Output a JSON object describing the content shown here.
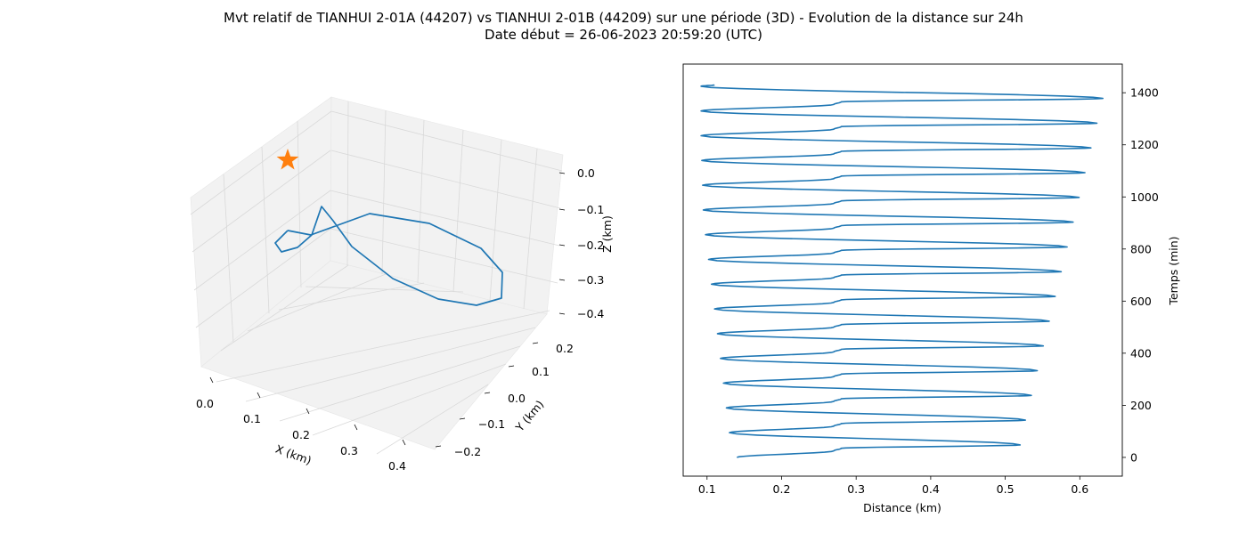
{
  "figure": {
    "title_line1": "Mvt relatif de TIANHUI 2-01A (44207) vs TIANHUI 2-01B (44209) sur une période (3D) - Evolution de la distance sur 24h",
    "title_line2": "Date début = 26-06-2023 20:59:20 (UTC)"
  },
  "colors": {
    "line": "#1f77b4",
    "marker": "#ff7f0e",
    "pane": "#f2f2f2",
    "grid": "#d9d9d9"
  },
  "chart_data": [
    {
      "type": "line3d",
      "xlabel": "X (km)",
      "ylabel": "Y (km)",
      "zlabel": "Z (km)",
      "xlim": [
        -0.02,
        0.43
      ],
      "ylim": [
        -0.24,
        0.24
      ],
      "zlim": [
        -0.42,
        0.04
      ],
      "xticks": [
        "0.0",
        "0.1",
        "0.2",
        "0.3",
        "0.4"
      ],
      "yticks": [
        "−0.2",
        "−0.1",
        "0.0",
        "0.1",
        "0.2"
      ],
      "zticks": [
        "0.0",
        "−0.1",
        "−0.2",
        "−0.3",
        "−0.4"
      ],
      "marker": {
        "shape": "star",
        "x": 0.0,
        "y": 0.0,
        "z": 0.0
      },
      "path_order": "points given in sequence, last joins first",
      "points": [
        {
          "x": 0.06,
          "y": -0.03,
          "z": -0.08
        },
        {
          "x": 0.09,
          "y": -0.02,
          "z": -0.12
        },
        {
          "x": 0.2,
          "y": 0.0,
          "z": -0.09
        },
        {
          "x": 0.31,
          "y": 0.03,
          "z": -0.11
        },
        {
          "x": 0.39,
          "y": 0.05,
          "z": -0.17
        },
        {
          "x": 0.41,
          "y": 0.03,
          "z": -0.25
        },
        {
          "x": 0.41,
          "y": -0.01,
          "z": -0.32
        },
        {
          "x": 0.35,
          "y": -0.09,
          "z": -0.37
        },
        {
          "x": 0.24,
          "y": -0.12,
          "z": -0.34
        },
        {
          "x": 0.16,
          "y": -0.11,
          "z": -0.27
        },
        {
          "x": 0.08,
          "y": -0.06,
          "z": -0.2
        },
        {
          "x": 0.03,
          "y": -0.02,
          "z": -0.14
        },
        {
          "x": 0.0,
          "y": 0.0,
          "z": -0.11
        },
        {
          "x": 0.0,
          "y": 0.02,
          "z": -0.09
        },
        {
          "x": 0.02,
          "y": 0.02,
          "z": -0.07
        },
        {
          "x": 0.04,
          "y": 0.0,
          "z": -0.07
        },
        {
          "x": 0.07,
          "y": -0.02,
          "z": -0.06
        }
      ]
    },
    {
      "type": "line",
      "xlabel": "Distance (km)",
      "ylabel": "Temps (min)",
      "xlim": [
        0.068,
        0.657
      ],
      "ylim": [
        -72,
        1510
      ],
      "xticks": [
        0.1,
        0.2,
        0.3,
        0.4,
        0.5,
        0.6
      ],
      "yticks": [
        0,
        200,
        400,
        600,
        800,
        1000,
        1200,
        1400
      ],
      "y_axis_side": "right",
      "period_min": 95,
      "peaks": [
        {
          "t": 0,
          "d": 0.14
        },
        {
          "t": 25,
          "d": 0.27
        },
        {
          "t": 35,
          "d": 0.28
        },
        {
          "t": 48,
          "d": 0.52
        },
        {
          "t": 95,
          "d": 0.13
        },
        {
          "t": 120,
          "d": 0.27
        },
        {
          "t": 130,
          "d": 0.28
        },
        {
          "t": 143,
          "d": 0.527
        },
        {
          "t": 190,
          "d": 0.126
        },
        {
          "t": 215,
          "d": 0.27
        },
        {
          "t": 225,
          "d": 0.28
        },
        {
          "t": 238,
          "d": 0.535
        },
        {
          "t": 285,
          "d": 0.122
        },
        {
          "t": 310,
          "d": 0.27
        },
        {
          "t": 320,
          "d": 0.28
        },
        {
          "t": 333,
          "d": 0.543
        },
        {
          "t": 380,
          "d": 0.118
        },
        {
          "t": 405,
          "d": 0.27
        },
        {
          "t": 415,
          "d": 0.28
        },
        {
          "t": 428,
          "d": 0.551
        },
        {
          "t": 475,
          "d": 0.114
        },
        {
          "t": 500,
          "d": 0.27
        },
        {
          "t": 510,
          "d": 0.28
        },
        {
          "t": 523,
          "d": 0.559
        },
        {
          "t": 570,
          "d": 0.11
        },
        {
          "t": 595,
          "d": 0.27
        },
        {
          "t": 605,
          "d": 0.28
        },
        {
          "t": 618,
          "d": 0.567
        },
        {
          "t": 665,
          "d": 0.106
        },
        {
          "t": 690,
          "d": 0.27
        },
        {
          "t": 700,
          "d": 0.28
        },
        {
          "t": 713,
          "d": 0.575
        },
        {
          "t": 760,
          "d": 0.102
        },
        {
          "t": 785,
          "d": 0.27
        },
        {
          "t": 795,
          "d": 0.28
        },
        {
          "t": 808,
          "d": 0.583
        },
        {
          "t": 855,
          "d": 0.098
        },
        {
          "t": 880,
          "d": 0.27
        },
        {
          "t": 890,
          "d": 0.28
        },
        {
          "t": 903,
          "d": 0.591
        },
        {
          "t": 950,
          "d": 0.095
        },
        {
          "t": 975,
          "d": 0.27
        },
        {
          "t": 985,
          "d": 0.28
        },
        {
          "t": 998,
          "d": 0.599
        },
        {
          "t": 1045,
          "d": 0.094
        },
        {
          "t": 1070,
          "d": 0.27
        },
        {
          "t": 1080,
          "d": 0.28
        },
        {
          "t": 1093,
          "d": 0.607
        },
        {
          "t": 1140,
          "d": 0.093
        },
        {
          "t": 1165,
          "d": 0.27
        },
        {
          "t": 1175,
          "d": 0.28
        },
        {
          "t": 1188,
          "d": 0.615
        },
        {
          "t": 1235,
          "d": 0.092
        },
        {
          "t": 1260,
          "d": 0.27
        },
        {
          "t": 1270,
          "d": 0.28
        },
        {
          "t": 1283,
          "d": 0.623
        },
        {
          "t": 1330,
          "d": 0.092
        },
        {
          "t": 1355,
          "d": 0.27
        },
        {
          "t": 1365,
          "d": 0.28
        },
        {
          "t": 1378,
          "d": 0.631
        },
        {
          "t": 1425,
          "d": 0.092
        },
        {
          "t": 1430,
          "d": 0.11
        }
      ]
    }
  ]
}
